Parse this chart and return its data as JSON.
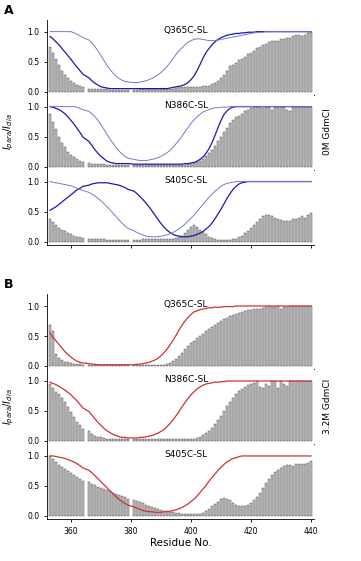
{
  "x_min": 352,
  "x_max": 441,
  "x_ticks": [
    360,
    380,
    400,
    420,
    440
  ],
  "y_ticks": [
    0.0,
    0.5,
    1.0
  ],
  "y_min": -0.05,
  "y_max": 1.2,
  "xlabel": "Residue No.",
  "bar_color": "#c8c8c8",
  "bar_edgecolor": "#333333",
  "bar_width": 0.7,
  "line_color_A_dark": "#1a1aaa",
  "line_color_A_light": "#7777cc",
  "line_color_B": "#cc3333",
  "subplot_titles": [
    "Q365C-SL",
    "N386C-SL",
    "S405C-SL"
  ],
  "right_label_A": "0M GdmCl",
  "right_label_B": "3.2M GdmCl",
  "residues": [
    353,
    354,
    355,
    356,
    357,
    358,
    359,
    360,
    361,
    362,
    363,
    364,
    366,
    367,
    368,
    369,
    370,
    371,
    372,
    373,
    374,
    375,
    376,
    377,
    378,
    379,
    381,
    382,
    383,
    384,
    385,
    386,
    387,
    388,
    389,
    390,
    391,
    392,
    393,
    394,
    395,
    396,
    397,
    398,
    399,
    400,
    401,
    402,
    403,
    404,
    405,
    406,
    407,
    408,
    409,
    410,
    411,
    412,
    413,
    414,
    415,
    416,
    417,
    418,
    419,
    420,
    421,
    422,
    423,
    424,
    425,
    426,
    427,
    428,
    429,
    430,
    431,
    432,
    433,
    434,
    435,
    436,
    437,
    438,
    439,
    440
  ],
  "A_Q365C_bars": [
    0.75,
    0.65,
    0.55,
    0.45,
    0.35,
    0.28,
    0.22,
    0.18,
    0.14,
    0.11,
    0.09,
    0.07,
    0.05,
    0.05,
    0.04,
    0.04,
    0.04,
    0.04,
    0.04,
    0.03,
    0.03,
    0.03,
    0.03,
    0.03,
    0.03,
    0.03,
    0.03,
    0.03,
    0.04,
    0.04,
    0.04,
    0.04,
    0.04,
    0.04,
    0.04,
    0.04,
    0.04,
    0.04,
    0.04,
    0.05,
    0.06,
    0.07,
    0.07,
    0.07,
    0.07,
    0.07,
    0.07,
    0.08,
    0.08,
    0.09,
    0.1,
    0.1,
    0.12,
    0.15,
    0.18,
    0.22,
    0.28,
    0.35,
    0.42,
    0.45,
    0.48,
    0.52,
    0.55,
    0.58,
    0.62,
    0.65,
    0.68,
    0.72,
    0.75,
    0.78,
    0.8,
    0.82,
    0.85,
    0.85,
    0.85,
    0.88,
    0.88,
    0.9,
    0.9,
    0.92,
    0.95,
    0.95,
    0.92,
    0.95,
    0.98,
    1.0
  ],
  "A_Q365C_dark": [
    0.92,
    0.88,
    0.83,
    0.78,
    0.72,
    0.66,
    0.6,
    0.54,
    0.47,
    0.41,
    0.35,
    0.29,
    0.23,
    0.18,
    0.14,
    0.11,
    0.08,
    0.07,
    0.06,
    0.05,
    0.05,
    0.05,
    0.05,
    0.05,
    0.05,
    0.05,
    0.05,
    0.05,
    0.05,
    0.05,
    0.05,
    0.05,
    0.05,
    0.05,
    0.05,
    0.05,
    0.05,
    0.05,
    0.06,
    0.07,
    0.08,
    0.09,
    0.1,
    0.12,
    0.15,
    0.2,
    0.26,
    0.35,
    0.45,
    0.56,
    0.65,
    0.72,
    0.78,
    0.83,
    0.87,
    0.9,
    0.92,
    0.94,
    0.95,
    0.96,
    0.97,
    0.97,
    0.98,
    0.98,
    0.99,
    0.99,
    0.99,
    1.0,
    1.0,
    1.0,
    1.0,
    1.0,
    1.0,
    1.0,
    1.0,
    1.0,
    1.0,
    1.0,
    1.0,
    1.0,
    1.0,
    1.0,
    1.0,
    1.0,
    1.0,
    1.0
  ],
  "A_Q365C_light": [
    1.0,
    1.0,
    1.0,
    1.0,
    1.0,
    1.0,
    1.0,
    1.0,
    0.98,
    0.96,
    0.93,
    0.9,
    0.86,
    0.81,
    0.75,
    0.68,
    0.6,
    0.52,
    0.44,
    0.37,
    0.31,
    0.26,
    0.22,
    0.19,
    0.17,
    0.16,
    0.15,
    0.15,
    0.16,
    0.17,
    0.18,
    0.2,
    0.22,
    0.25,
    0.28,
    0.32,
    0.37,
    0.42,
    0.48,
    0.55,
    0.62,
    0.68,
    0.73,
    0.78,
    0.82,
    0.85,
    0.87,
    0.88,
    0.88,
    0.87,
    0.86,
    0.85,
    0.85,
    0.85,
    0.86,
    0.87,
    0.88,
    0.89,
    0.9,
    0.91,
    0.92,
    0.93,
    0.94,
    0.95,
    0.96,
    0.97,
    0.98,
    0.98,
    0.99,
    0.99,
    1.0,
    1.0,
    1.0,
    1.0,
    1.0,
    1.0,
    1.0,
    1.0,
    1.0,
    1.0,
    1.0,
    1.0,
    1.0,
    1.0,
    1.0,
    1.0
  ],
  "A_N386C_bars": [
    0.88,
    0.75,
    0.62,
    0.5,
    0.4,
    0.32,
    0.25,
    0.2,
    0.16,
    0.13,
    0.1,
    0.08,
    0.06,
    0.05,
    0.05,
    0.04,
    0.04,
    0.04,
    0.03,
    0.03,
    0.03,
    0.03,
    0.03,
    0.03,
    0.03,
    0.03,
    0.03,
    0.03,
    0.03,
    0.03,
    0.03,
    0.03,
    0.03,
    0.03,
    0.03,
    0.03,
    0.03,
    0.03,
    0.03,
    0.03,
    0.03,
    0.03,
    0.03,
    0.03,
    0.04,
    0.05,
    0.06,
    0.08,
    0.1,
    0.13,
    0.17,
    0.22,
    0.28,
    0.35,
    0.42,
    0.5,
    0.58,
    0.65,
    0.72,
    0.78,
    0.82,
    0.85,
    0.88,
    0.92,
    0.95,
    0.98,
    1.0,
    1.0,
    1.0,
    0.98,
    1.0,
    1.0,
    0.95,
    1.0,
    1.0,
    1.0,
    1.0,
    0.95,
    0.92,
    1.0,
    1.0,
    1.0,
    1.0,
    1.0,
    1.0,
    1.0
  ],
  "A_N386C_dark": [
    1.0,
    0.99,
    0.97,
    0.95,
    0.92,
    0.88,
    0.83,
    0.77,
    0.71,
    0.64,
    0.57,
    0.49,
    0.42,
    0.35,
    0.28,
    0.22,
    0.17,
    0.13,
    0.09,
    0.07,
    0.06,
    0.05,
    0.05,
    0.05,
    0.05,
    0.05,
    0.04,
    0.04,
    0.04,
    0.04,
    0.04,
    0.04,
    0.04,
    0.04,
    0.04,
    0.04,
    0.04,
    0.04,
    0.04,
    0.04,
    0.04,
    0.04,
    0.04,
    0.05,
    0.05,
    0.06,
    0.07,
    0.09,
    0.12,
    0.16,
    0.22,
    0.3,
    0.4,
    0.52,
    0.65,
    0.77,
    0.87,
    0.93,
    0.97,
    0.99,
    1.0,
    1.0,
    1.0,
    1.0,
    1.0,
    1.0,
    1.0,
    1.0,
    1.0,
    1.0,
    1.0,
    1.0,
    1.0,
    1.0,
    1.0,
    1.0,
    1.0,
    1.0,
    1.0,
    1.0,
    1.0,
    1.0,
    1.0,
    1.0,
    1.0,
    1.0
  ],
  "A_N386C_light": [
    1.0,
    1.0,
    1.0,
    1.0,
    1.0,
    1.0,
    1.0,
    1.0,
    1.0,
    0.99,
    0.97,
    0.95,
    0.92,
    0.88,
    0.83,
    0.77,
    0.7,
    0.62,
    0.54,
    0.46,
    0.39,
    0.32,
    0.26,
    0.21,
    0.17,
    0.14,
    0.12,
    0.11,
    0.1,
    0.1,
    0.1,
    0.11,
    0.12,
    0.13,
    0.15,
    0.17,
    0.2,
    0.23,
    0.27,
    0.32,
    0.38,
    0.44,
    0.51,
    0.58,
    0.65,
    0.72,
    0.78,
    0.83,
    0.87,
    0.91,
    0.93,
    0.95,
    0.97,
    0.98,
    0.98,
    0.99,
    0.99,
    0.99,
    1.0,
    1.0,
    1.0,
    1.0,
    1.0,
    1.0,
    1.0,
    1.0,
    1.0,
    1.0,
    1.0,
    1.0,
    1.0,
    1.0,
    1.0,
    1.0,
    1.0,
    1.0,
    1.0,
    1.0,
    1.0,
    1.0,
    1.0,
    1.0,
    1.0,
    1.0,
    1.0,
    1.0
  ],
  "A_S405C_bars": [
    0.38,
    0.32,
    0.27,
    0.23,
    0.2,
    0.17,
    0.14,
    0.12,
    0.1,
    0.08,
    0.07,
    0.06,
    0.05,
    0.05,
    0.04,
    0.04,
    0.04,
    0.04,
    0.03,
    0.03,
    0.03,
    0.03,
    0.03,
    0.03,
    0.03,
    0.03,
    0.03,
    0.03,
    0.03,
    0.04,
    0.04,
    0.04,
    0.04,
    0.04,
    0.04,
    0.04,
    0.04,
    0.04,
    0.04,
    0.05,
    0.06,
    0.07,
    0.1,
    0.15,
    0.2,
    0.25,
    0.28,
    0.25,
    0.2,
    0.16,
    0.12,
    0.08,
    0.06,
    0.04,
    0.03,
    0.03,
    0.03,
    0.03,
    0.03,
    0.04,
    0.05,
    0.07,
    0.1,
    0.14,
    0.18,
    0.23,
    0.28,
    0.33,
    0.38,
    0.42,
    0.45,
    0.45,
    0.42,
    0.4,
    0.38,
    0.36,
    0.35,
    0.35,
    0.35,
    0.38,
    0.38,
    0.4,
    0.42,
    0.4,
    0.45,
    0.48
  ],
  "A_S405C_dark": [
    0.52,
    0.55,
    0.58,
    0.62,
    0.66,
    0.7,
    0.74,
    0.78,
    0.82,
    0.86,
    0.89,
    0.92,
    0.94,
    0.96,
    0.97,
    0.98,
    0.98,
    0.98,
    0.98,
    0.97,
    0.96,
    0.95,
    0.94,
    0.92,
    0.9,
    0.87,
    0.84,
    0.8,
    0.75,
    0.7,
    0.64,
    0.58,
    0.51,
    0.44,
    0.37,
    0.3,
    0.24,
    0.19,
    0.15,
    0.12,
    0.1,
    0.09,
    0.08,
    0.08,
    0.08,
    0.09,
    0.1,
    0.12,
    0.14,
    0.17,
    0.21,
    0.25,
    0.31,
    0.38,
    0.46,
    0.54,
    0.63,
    0.72,
    0.8,
    0.87,
    0.92,
    0.96,
    0.98,
    0.99,
    1.0,
    1.0,
    1.0,
    1.0,
    1.0,
    1.0,
    1.0,
    1.0,
    1.0,
    1.0,
    1.0,
    1.0,
    1.0,
    1.0,
    1.0,
    1.0,
    1.0,
    1.0,
    1.0,
    1.0,
    1.0,
    1.0
  ],
  "A_S405C_light": [
    1.0,
    0.99,
    0.98,
    0.97,
    0.96,
    0.95,
    0.94,
    0.93,
    0.91,
    0.89,
    0.87,
    0.85,
    0.82,
    0.79,
    0.76,
    0.72,
    0.68,
    0.63,
    0.58,
    0.53,
    0.47,
    0.42,
    0.36,
    0.31,
    0.26,
    0.22,
    0.18,
    0.15,
    0.13,
    0.11,
    0.09,
    0.08,
    0.08,
    0.08,
    0.08,
    0.09,
    0.1,
    0.11,
    0.13,
    0.15,
    0.18,
    0.21,
    0.25,
    0.29,
    0.34,
    0.39,
    0.44,
    0.5,
    0.56,
    0.62,
    0.68,
    0.74,
    0.79,
    0.84,
    0.88,
    0.92,
    0.95,
    0.97,
    0.98,
    0.99,
    1.0,
    1.0,
    1.0,
    1.0,
    1.0,
    1.0,
    1.0,
    1.0,
    1.0,
    1.0,
    1.0,
    1.0,
    1.0,
    1.0,
    1.0,
    1.0,
    1.0,
    1.0,
    1.0,
    1.0,
    1.0,
    1.0,
    1.0,
    1.0,
    1.0,
    1.0
  ],
  "B_Q365C_bars": [
    0.68,
    0.58,
    0.2,
    0.14,
    0.1,
    0.07,
    0.06,
    0.05,
    0.04,
    0.03,
    0.03,
    0.02,
    0.02,
    0.02,
    0.02,
    0.02,
    0.02,
    0.02,
    0.02,
    0.02,
    0.02,
    0.02,
    0.02,
    0.02,
    0.02,
    0.02,
    0.02,
    0.02,
    0.02,
    0.02,
    0.02,
    0.02,
    0.02,
    0.02,
    0.02,
    0.02,
    0.02,
    0.03,
    0.05,
    0.08,
    0.12,
    0.17,
    0.22,
    0.28,
    0.33,
    0.38,
    0.42,
    0.46,
    0.5,
    0.54,
    0.58,
    0.62,
    0.65,
    0.68,
    0.72,
    0.75,
    0.78,
    0.8,
    0.83,
    0.85,
    0.87,
    0.88,
    0.9,
    0.92,
    0.93,
    0.93,
    0.95,
    0.95,
    0.95,
    0.97,
    0.98,
    1.0,
    0.98,
    0.98,
    1.0,
    0.95,
    0.98,
    0.98,
    1.0,
    1.0,
    1.0,
    1.0,
    1.0,
    1.0,
    1.0,
    1.0
  ],
  "B_Q365C_line": [
    0.55,
    0.48,
    0.42,
    0.36,
    0.3,
    0.24,
    0.19,
    0.15,
    0.11,
    0.08,
    0.06,
    0.05,
    0.04,
    0.03,
    0.03,
    0.02,
    0.02,
    0.02,
    0.02,
    0.02,
    0.02,
    0.02,
    0.02,
    0.02,
    0.02,
    0.02,
    0.02,
    0.03,
    0.03,
    0.04,
    0.05,
    0.06,
    0.08,
    0.1,
    0.13,
    0.17,
    0.22,
    0.28,
    0.35,
    0.43,
    0.51,
    0.6,
    0.68,
    0.75,
    0.81,
    0.86,
    0.9,
    0.92,
    0.94,
    0.95,
    0.96,
    0.97,
    0.97,
    0.98,
    0.98,
    0.98,
    0.99,
    0.99,
    0.99,
    0.99,
    1.0,
    1.0,
    1.0,
    1.0,
    1.0,
    1.0,
    1.0,
    1.0,
    1.0,
    1.0,
    1.0,
    1.0,
    1.0,
    1.0,
    1.0,
    1.0,
    1.0,
    1.0,
    1.0,
    1.0,
    1.0,
    1.0,
    1.0,
    1.0,
    1.0,
    1.0
  ],
  "B_N386C_bars": [
    0.95,
    0.88,
    0.82,
    0.78,
    0.72,
    0.65,
    0.57,
    0.48,
    0.4,
    0.32,
    0.26,
    0.2,
    0.16,
    0.12,
    0.09,
    0.07,
    0.06,
    0.05,
    0.04,
    0.04,
    0.03,
    0.03,
    0.03,
    0.03,
    0.03,
    0.03,
    0.03,
    0.03,
    0.03,
    0.03,
    0.03,
    0.03,
    0.03,
    0.03,
    0.03,
    0.03,
    0.03,
    0.03,
    0.03,
    0.03,
    0.03,
    0.03,
    0.03,
    0.03,
    0.03,
    0.03,
    0.04,
    0.05,
    0.07,
    0.1,
    0.13,
    0.17,
    0.22,
    0.28,
    0.35,
    0.42,
    0.5,
    0.58,
    0.65,
    0.72,
    0.78,
    0.83,
    0.87,
    0.9,
    0.93,
    0.95,
    0.97,
    1.0,
    0.9,
    0.88,
    0.95,
    0.92,
    1.0,
    1.0,
    0.88,
    1.0,
    0.95,
    0.92,
    1.0,
    1.0,
    1.0,
    1.0,
    1.0,
    1.0,
    1.0,
    1.0
  ],
  "B_N386C_line": [
    0.98,
    0.96,
    0.94,
    0.91,
    0.88,
    0.85,
    0.81,
    0.77,
    0.72,
    0.67,
    0.61,
    0.55,
    0.49,
    0.43,
    0.37,
    0.31,
    0.26,
    0.21,
    0.17,
    0.14,
    0.11,
    0.09,
    0.07,
    0.06,
    0.06,
    0.05,
    0.05,
    0.05,
    0.06,
    0.06,
    0.07,
    0.08,
    0.09,
    0.11,
    0.13,
    0.16,
    0.19,
    0.24,
    0.29,
    0.35,
    0.42,
    0.49,
    0.57,
    0.64,
    0.71,
    0.77,
    0.82,
    0.87,
    0.9,
    0.93,
    0.95,
    0.96,
    0.97,
    0.98,
    0.98,
    0.99,
    0.99,
    1.0,
    1.0,
    1.0,
    1.0,
    1.0,
    1.0,
    1.0,
    1.0,
    1.0,
    1.0,
    1.0,
    1.0,
    1.0,
    1.0,
    1.0,
    1.0,
    1.0,
    1.0,
    1.0,
    1.0,
    1.0,
    1.0,
    1.0,
    1.0,
    1.0,
    1.0,
    1.0,
    1.0,
    1.0
  ],
  "B_S405C_bars": [
    1.0,
    0.95,
    0.9,
    0.85,
    0.82,
    0.78,
    0.75,
    0.72,
    0.68,
    0.65,
    0.62,
    0.59,
    0.56,
    0.53,
    0.51,
    0.49,
    0.47,
    0.45,
    0.43,
    0.41,
    0.39,
    0.37,
    0.35,
    0.33,
    0.31,
    0.29,
    0.27,
    0.25,
    0.23,
    0.21,
    0.19,
    0.17,
    0.15,
    0.13,
    0.12,
    0.1,
    0.09,
    0.08,
    0.07,
    0.06,
    0.05,
    0.05,
    0.04,
    0.04,
    0.03,
    0.03,
    0.03,
    0.03,
    0.04,
    0.05,
    0.08,
    0.12,
    0.16,
    0.2,
    0.24,
    0.28,
    0.3,
    0.29,
    0.26,
    0.22,
    0.19,
    0.17,
    0.16,
    0.16,
    0.18,
    0.21,
    0.26,
    0.32,
    0.39,
    0.47,
    0.55,
    0.62,
    0.68,
    0.73,
    0.77,
    0.8,
    0.83,
    0.85,
    0.85,
    0.83,
    0.86,
    0.86,
    0.86,
    0.86,
    0.89,
    0.92
  ],
  "B_S405C_line": [
    1.0,
    1.0,
    0.99,
    0.98,
    0.97,
    0.96,
    0.94,
    0.92,
    0.9,
    0.87,
    0.84,
    0.8,
    0.76,
    0.72,
    0.67,
    0.62,
    0.57,
    0.52,
    0.47,
    0.42,
    0.37,
    0.32,
    0.28,
    0.24,
    0.21,
    0.18,
    0.15,
    0.13,
    0.11,
    0.09,
    0.08,
    0.07,
    0.07,
    0.06,
    0.06,
    0.06,
    0.07,
    0.07,
    0.08,
    0.09,
    0.1,
    0.12,
    0.14,
    0.17,
    0.2,
    0.24,
    0.28,
    0.33,
    0.39,
    0.45,
    0.51,
    0.58,
    0.64,
    0.7,
    0.76,
    0.81,
    0.86,
    0.9,
    0.93,
    0.96,
    0.97,
    0.99,
    1.0,
    1.0,
    1.0,
    1.0,
    1.0,
    1.0,
    1.0,
    1.0,
    1.0,
    1.0,
    1.0,
    1.0,
    1.0,
    1.0,
    1.0,
    1.0,
    1.0,
    1.0,
    1.0,
    1.0,
    1.0,
    1.0,
    1.0,
    1.0
  ]
}
